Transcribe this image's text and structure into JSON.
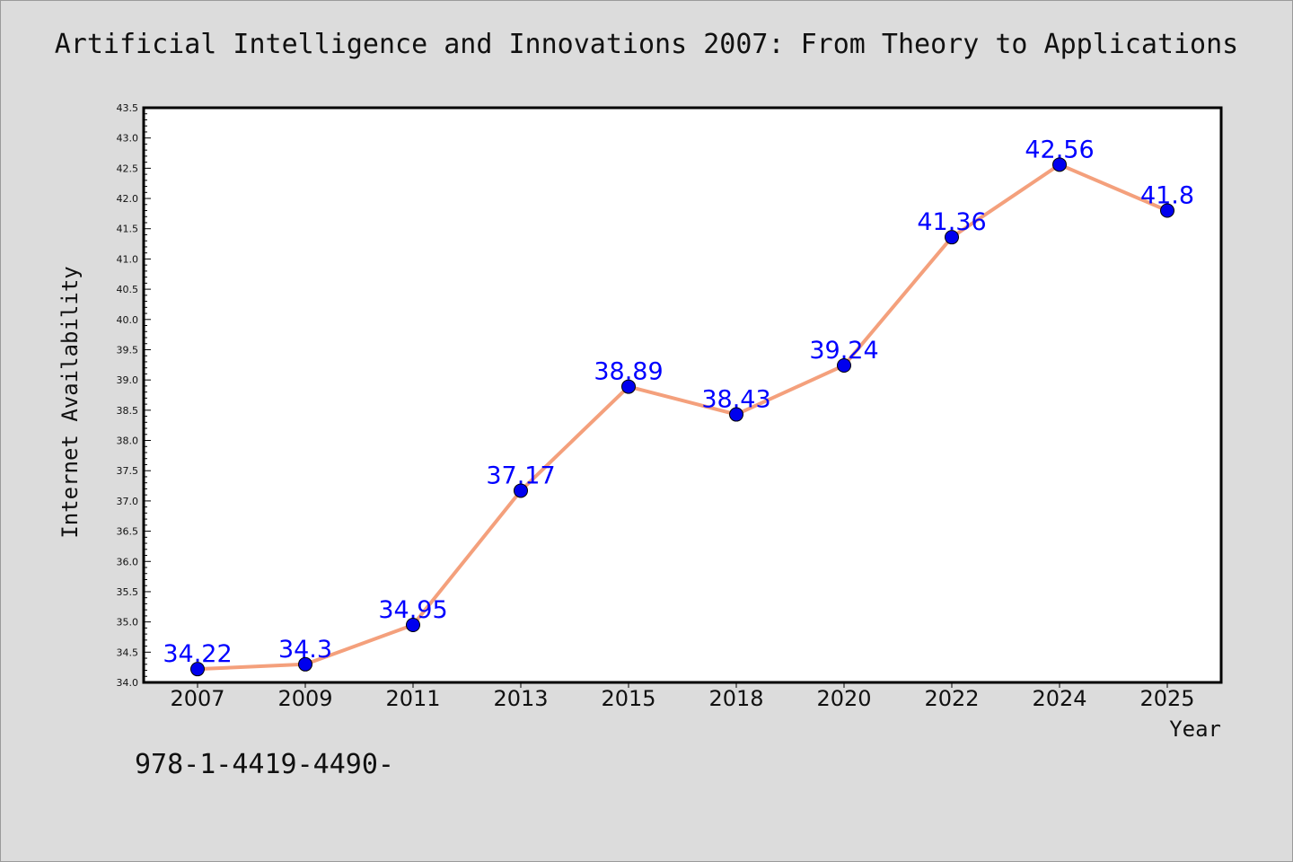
{
  "chart_data": {
    "type": "line",
    "title": "Artificial Intelligence and Innovations 2007: From Theory to Applications",
    "xlabel": "Year",
    "ylabel": "Internet Availability",
    "categories": [
      "2007",
      "2009",
      "2011",
      "2013",
      "2015",
      "2018",
      "2020",
      "2022",
      "2024",
      "2025"
    ],
    "series": [
      {
        "values": [
          34.22,
          34.3,
          34.95,
          37.17,
          38.89,
          38.43,
          39.24,
          41.36,
          42.56,
          41.8
        ],
        "data_labels": [
          "34.22",
          "34.3",
          "34.95",
          "37.17",
          "38.89",
          "38.43",
          "39.24",
          "41.36",
          "42.56",
          "41.8"
        ],
        "line_color": "#f4a07c",
        "marker_color": "#0000ee"
      }
    ],
    "ylim": [
      34.0,
      43.5
    ],
    "yticks": [
      "34.0",
      "34.5",
      "35.0",
      "35.5",
      "36.0",
      "36.5",
      "37.0",
      "37.5",
      "38.0",
      "38.5",
      "39.0",
      "39.5",
      "40.0",
      "40.5",
      "41.0",
      "41.5",
      "42.0",
      "42.5",
      "43.0",
      "43.5"
    ],
    "grid": false,
    "legend": "none",
    "data_label_color": "#0000ff"
  },
  "footer": {
    "isbn": "978-1-4419-4490-"
  }
}
